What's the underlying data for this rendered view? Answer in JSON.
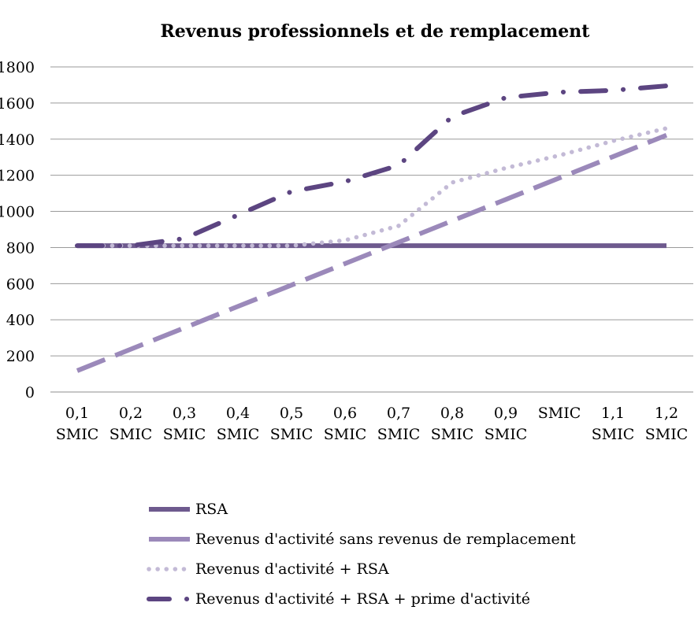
{
  "chart_data": {
    "type": "line",
    "title": "Revenus professionnels et de remplacement",
    "xlabel": "",
    "ylabel": "",
    "ylim": [
      0,
      1800
    ],
    "yticks": [
      "0",
      "200",
      "400",
      "600",
      "800",
      "1000",
      "1200",
      "1400",
      "1600",
      "1800"
    ],
    "grid": true,
    "legend_position": "bottom",
    "categories": [
      [
        "0,1",
        "SMIC"
      ],
      [
        "0,2",
        "SMIC"
      ],
      [
        "0,3",
        "SMIC"
      ],
      [
        "0,4",
        "SMIC"
      ],
      [
        "0,5",
        "SMIC"
      ],
      [
        "0,6",
        "SMIC"
      ],
      [
        "0,7",
        "SMIC"
      ],
      [
        "0,8",
        "SMIC"
      ],
      [
        "0,9",
        "SMIC"
      ],
      [
        "SMIC"
      ],
      [
        "1,1",
        "SMIC"
      ],
      [
        "1,2",
        "SMIC"
      ]
    ],
    "series": [
      {
        "name": "RSA",
        "color": "#6e5a8e",
        "style": "solid",
        "values": [
          810,
          810,
          810,
          810,
          810,
          810,
          810,
          810,
          810,
          810,
          810,
          810
        ]
      },
      {
        "name": "Revenus d'activité sans revenus de remplacement",
        "color": "#9b89ba",
        "style": "long-dash",
        "values": [
          118,
          237,
          355,
          474,
          592,
          711,
          829,
          948,
          1066,
          1185,
          1303,
          1422
        ]
      },
      {
        "name": "Revenus d'activité + RSA",
        "color": "#c3bad6",
        "style": "dotted",
        "values": [
          810,
          810,
          810,
          810,
          810,
          840,
          920,
          1160,
          1240,
          1310,
          1390,
          1460
        ]
      },
      {
        "name": "Revenus d'activité + RSA + prime d'activité",
        "color": "#5c4581",
        "style": "dash-dot",
        "values": [
          810,
          810,
          850,
          980,
          1110,
          1165,
          1255,
          1525,
          1630,
          1660,
          1670,
          1695
        ]
      }
    ]
  }
}
